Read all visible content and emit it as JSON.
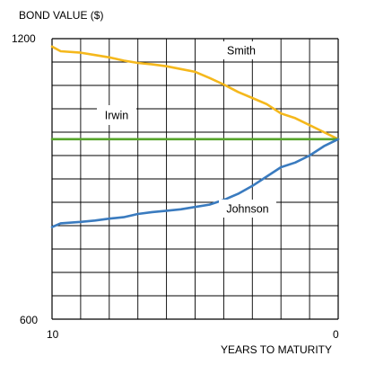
{
  "chart_data": {
    "type": "line",
    "title": "",
    "ylabel": "BOND VALUE ($)",
    "xlabel": "YEARS TO MATURITY",
    "xlim": [
      10,
      0
    ],
    "ylim": [
      600,
      1200
    ],
    "y_ticks": [
      "1200",
      "600"
    ],
    "x_ticks": [
      "10",
      "0"
    ],
    "grid": true,
    "series": [
      {
        "name": "Smith",
        "color": "#f5b81c",
        "x": [
          10,
          9.7,
          9,
          8.5,
          8,
          7.5,
          7,
          6.5,
          6,
          5.5,
          5,
          4.5,
          4,
          3.5,
          3,
          2.5,
          2,
          1.5,
          1,
          0.5,
          0
        ],
        "values": [
          1183,
          1173,
          1170,
          1165,
          1160,
          1153,
          1148,
          1145,
          1141,
          1135,
          1129,
          1116,
          1102,
          1086,
          1073,
          1060,
          1040,
          1030,
          1015,
          1000,
          985
        ]
      },
      {
        "name": "Irwin",
        "color": "#55a42a",
        "x": [
          10,
          0
        ],
        "values": [
          985,
          985
        ]
      },
      {
        "name": "Johnson",
        "color": "#3a7bbf",
        "x": [
          10,
          9.7,
          9,
          8.5,
          8,
          7.5,
          7,
          6.5,
          6,
          5.5,
          5,
          4.5,
          4,
          3.5,
          3,
          2.5,
          2,
          1.5,
          1,
          0.5,
          0
        ],
        "values": [
          797,
          805,
          808,
          811,
          815,
          818,
          825,
          829,
          832,
          835,
          840,
          845,
          855,
          868,
          885,
          905,
          925,
          935,
          950,
          970,
          985
        ]
      }
    ]
  }
}
